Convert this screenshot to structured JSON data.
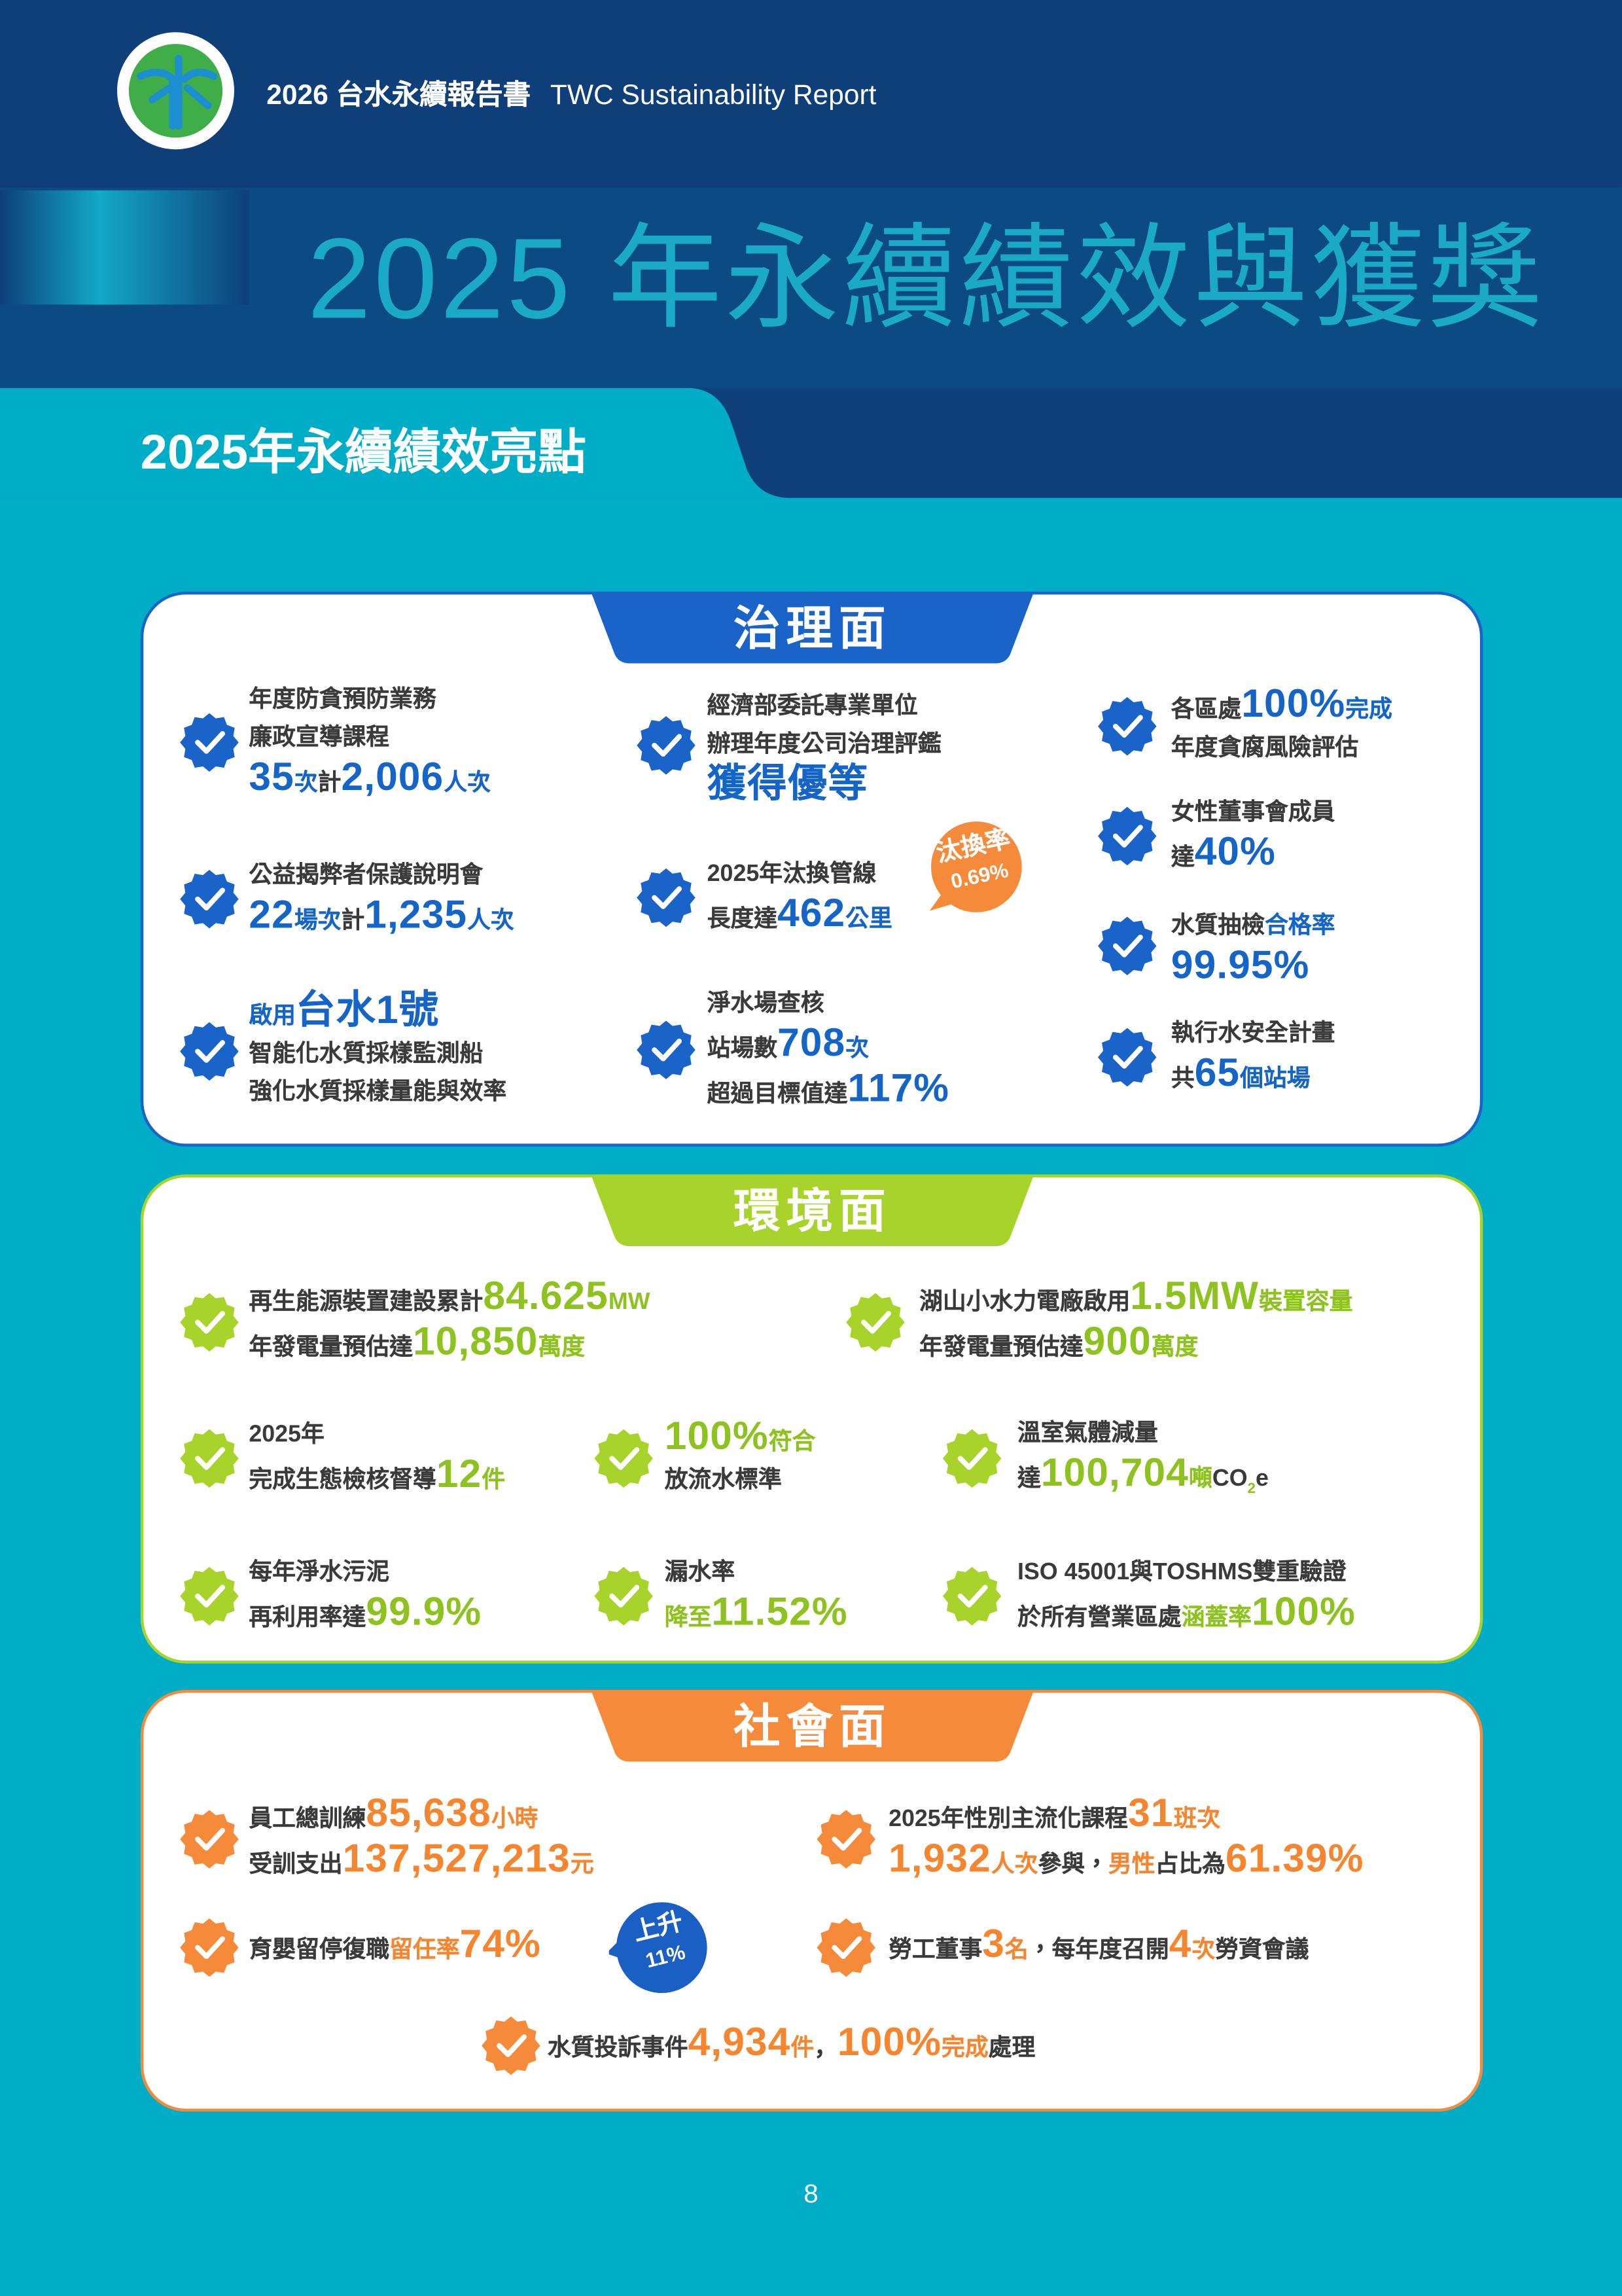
{
  "header": {
    "year": "2026",
    "title": "台水永續報告書",
    "title_en": "TWC Sustainability Report"
  },
  "page_title": "2025 年永續績效與獲獎",
  "section_title": "2025年永續績效亮點",
  "panels": [
    {
      "title": "治理面",
      "items": [
        {
          "lines": [
            [
              {
                "text": "年度防貪預防業務",
                "style": "plain"
              }
            ],
            [
              {
                "text": "廉政宣導課程",
                "style": "plain"
              }
            ],
            [
              {
                "text": "35",
                "style": "highlight"
              },
              {
                "text": "次",
                "style": "accent"
              },
              {
                "text": "計",
                "style": "plain"
              },
              {
                "text": "2,006",
                "style": "highlight"
              },
              {
                "text": "人次",
                "style": "accent"
              }
            ]
          ]
        },
        {
          "lines": [
            [
              {
                "text": "經濟部委託專業單位",
                "style": "plain"
              }
            ],
            [
              {
                "text": "辦理年度公司治理評鑑",
                "style": "plain"
              }
            ],
            [
              {
                "text": "獲得優等",
                "style": "highlight"
              }
            ]
          ]
        },
        {
          "lines": [
            [
              {
                "text": "各區處",
                "style": "plain"
              },
              {
                "text": "100%",
                "style": "highlight"
              },
              {
                "text": "完成",
                "style": "accent"
              }
            ],
            [
              {
                "text": "年度貪腐風險評估",
                "style": "plain"
              }
            ]
          ]
        },
        {
          "lines": [
            [
              {
                "text": "女性董事會成員",
                "style": "plain"
              }
            ],
            [
              {
                "text": "達",
                "style": "plain"
              },
              {
                "text": "40%",
                "style": "highlight"
              }
            ]
          ]
        },
        {
          "lines": [
            [
              {
                "text": "公益揭弊者保護說明會",
                "style": "plain"
              }
            ],
            [
              {
                "text": "22",
                "style": "highlight"
              },
              {
                "text": "場次",
                "style": "accent"
              },
              {
                "text": "計",
                "style": "plain"
              },
              {
                "text": "1,235",
                "style": "highlight"
              },
              {
                "text": "人次",
                "style": "accent"
              }
            ]
          ]
        },
        {
          "lines": [
            [
              {
                "text": "2025年汰換管線",
                "style": "plain"
              }
            ],
            [
              {
                "text": "長度達",
                "style": "plain"
              },
              {
                "text": "462",
                "style": "highlight"
              },
              {
                "text": "公里",
                "style": "accent"
              }
            ]
          ],
          "badge": [
            "汰換率",
            "0.69%"
          ]
        },
        {
          "lines": [
            [
              {
                "text": "水質抽檢",
                "style": "plain"
              },
              {
                "text": "合格率",
                "style": "accent"
              }
            ],
            [
              {
                "text": "99.95%",
                "style": "highlight"
              }
            ]
          ]
        },
        {
          "lines": [
            [
              {
                "text": "啟用",
                "style": "accent"
              },
              {
                "text": "台水1號",
                "style": "highlight"
              }
            ],
            [
              {
                "text": "智能化水質採樣監測船",
                "style": "plain"
              }
            ],
            [
              {
                "text": "強化水質採樣量能與效率",
                "style": "plain"
              }
            ]
          ]
        },
        {
          "lines": [
            [
              {
                "text": "淨水場查核",
                "style": "plain"
              }
            ],
            [
              {
                "text": "站場數",
                "style": "plain"
              },
              {
                "text": "708",
                "style": "highlight"
              },
              {
                "text": "次",
                "style": "accent"
              }
            ],
            [
              {
                "text": "超過目標值達",
                "style": "plain"
              },
              {
                "text": "117%",
                "style": "highlight"
              }
            ]
          ]
        },
        {
          "lines": [
            [
              {
                "text": "執行水安全計畫",
                "style": "plain"
              }
            ],
            [
              {
                "text": "共",
                "style": "plain"
              },
              {
                "text": "65",
                "style": "highlight"
              },
              {
                "text": "個站場",
                "style": "accent"
              }
            ]
          ]
        }
      ]
    },
    {
      "title": "環境面",
      "items": [
        {
          "lines": [
            [
              {
                "text": "再生能源裝置建設累計",
                "style": "plain"
              },
              {
                "text": "84.625",
                "style": "highlight"
              },
              {
                "text": "MW",
                "style": "accent"
              }
            ],
            [
              {
                "text": "年發電量預估達",
                "style": "plain"
              },
              {
                "text": "10,850",
                "style": "highlight"
              },
              {
                "text": "萬度",
                "style": "accent"
              }
            ]
          ]
        },
        {
          "lines": [
            [
              {
                "text": "湖山小水力電廠啟用",
                "style": "plain"
              },
              {
                "text": "1.5MW",
                "style": "highlight"
              },
              {
                "text": "裝置容量",
                "style": "accent"
              }
            ],
            [
              {
                "text": "年發電量預估達",
                "style": "plain"
              },
              {
                "text": "900",
                "style": "highlight"
              },
              {
                "text": "萬度",
                "style": "accent"
              }
            ]
          ]
        },
        {
          "lines": [
            [
              {
                "text": "2025年",
                "style": "plain"
              }
            ],
            [
              {
                "text": "完成生態檢核督導",
                "style": "plain"
              },
              {
                "text": "12",
                "style": "highlight"
              },
              {
                "text": "件",
                "style": "accent"
              }
            ]
          ]
        },
        {
          "lines": [
            [
              {
                "text": "100%",
                "style": "highlight"
              },
              {
                "text": "符合",
                "style": "accent"
              }
            ],
            [
              {
                "text": "放流水標準",
                "style": "plain"
              }
            ]
          ]
        },
        {
          "lines": [
            [
              {
                "text": "溫室氣體減量",
                "style": "plain"
              }
            ],
            [
              {
                "text": "達",
                "style": "plain"
              },
              {
                "text": "100,704",
                "style": "highlight"
              },
              {
                "text": "噸",
                "style": "accent"
              },
              {
                "text": "CO",
                "style": "plain"
              },
              {
                "text": "2",
                "style": "subscript"
              },
              {
                "text": "e",
                "style": "plain"
              }
            ]
          ]
        },
        {
          "lines": [
            [
              {
                "text": "每年淨水污泥",
                "style": "plain"
              }
            ],
            [
              {
                "text": "再利用率達",
                "style": "plain"
              },
              {
                "text": "99.9%",
                "style": "highlight"
              }
            ]
          ]
        },
        {
          "lines": [
            [
              {
                "text": "漏水率",
                "style": "plain"
              }
            ],
            [
              {
                "text": "降至",
                "style": "accent"
              },
              {
                "text": "11.52%",
                "style": "highlight"
              }
            ]
          ]
        },
        {
          "lines": [
            [
              {
                "text": "ISO 45001與TOSHMS雙重驗證",
                "style": "plain"
              }
            ],
            [
              {
                "text": "於所有營業區處",
                "style": "plain"
              },
              {
                "text": "涵蓋率",
                "style": "accent"
              },
              {
                "text": "100%",
                "style": "highlight"
              }
            ]
          ]
        }
      ]
    },
    {
      "title": "社會面",
      "items": [
        {
          "lines": [
            [
              {
                "text": "員工總訓練",
                "style": "plain"
              },
              {
                "text": "85,638",
                "style": "highlight"
              },
              {
                "text": "小時",
                "style": "accent"
              }
            ],
            [
              {
                "text": "受訓支出",
                "style": "plain"
              },
              {
                "text": "137,527,213",
                "style": "highlight"
              },
              {
                "text": "元",
                "style": "accent"
              }
            ]
          ]
        },
        {
          "lines": [
            [
              {
                "text": "2025年性別主流化課程",
                "style": "plain"
              },
              {
                "text": "31",
                "style": "highlight"
              },
              {
                "text": "班次",
                "style": "accent"
              }
            ],
            [
              {
                "text": "1,932",
                "style": "highlight"
              },
              {
                "text": "人次",
                "style": "accent"
              },
              {
                "text": "參與，",
                "style": "plain"
              },
              {
                "text": "男性",
                "style": "accent"
              },
              {
                "text": "占比為",
                "style": "plain"
              },
              {
                "text": "61.39%",
                "style": "highlight"
              }
            ]
          ]
        },
        {
          "lines": [
            [
              {
                "text": "育嬰留停復職",
                "style": "plain"
              },
              {
                "text": "留任率",
                "style": "accent"
              },
              {
                "text": "74%",
                "style": "highlight"
              }
            ]
          ],
          "badge": [
            "上升",
            "11%"
          ]
        },
        {
          "lines": [
            [
              {
                "text": "勞工董事",
                "style": "plain"
              },
              {
                "text": "3",
                "style": "highlight"
              },
              {
                "text": "名",
                "style": "accent"
              },
              {
                "text": "，每年度召開",
                "style": "plain"
              },
              {
                "text": "4",
                "style": "highlight"
              },
              {
                "text": "次",
                "style": "accent"
              },
              {
                "text": "勞資會議",
                "style": "plain"
              }
            ]
          ]
        },
        {
          "lines": [
            [
              {
                "text": "水質投訴事件",
                "style": "plain"
              },
              {
                "text": "4,934",
                "style": "highlight"
              },
              {
                "text": "件",
                "style": "accent"
              },
              {
                "text": "，",
                "style": "plain"
              },
              {
                "text": "100%",
                "style": "highlight"
              },
              {
                "text": "完成",
                "style": "accent"
              },
              {
                "text": "處理",
                "style": "plain"
              }
            ]
          ]
        }
      ]
    }
  ],
  "page_number": "8"
}
